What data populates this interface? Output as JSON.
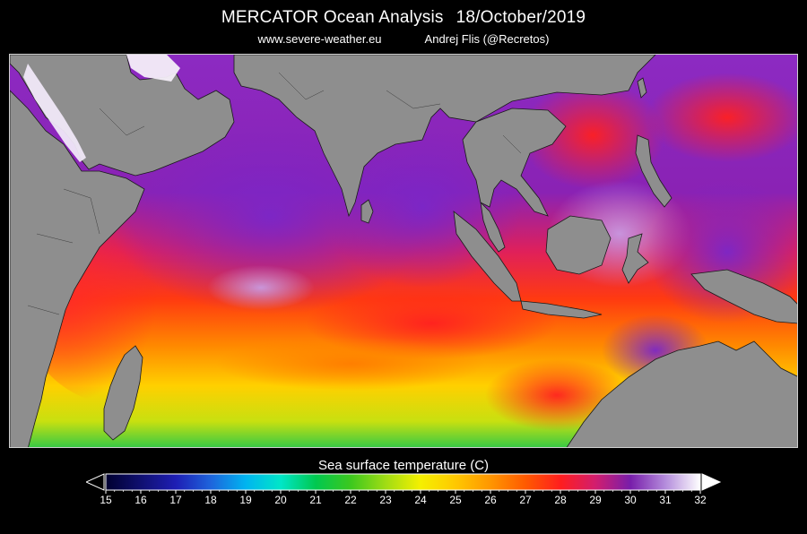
{
  "header": {
    "title_main": "MERCATOR Ocean Analysis",
    "title_date": "18/October/2019",
    "website": "www.severe-weather.eu",
    "author": "Andrej Flis (@Recretos)"
  },
  "map": {
    "variable": "Sea surface temperature",
    "land_color": "#8e8e8e",
    "coastline_color": "#1a1a1a"
  },
  "colorbar": {
    "title": "Sea surface temperature (C)",
    "min": 15,
    "max": 32,
    "tick_labels": [
      "15",
      "16",
      "17",
      "18",
      "19",
      "20",
      "21",
      "22",
      "23",
      "24",
      "25",
      "26",
      "27",
      "28",
      "29",
      "30",
      "31",
      "32"
    ],
    "color_stops": [
      {
        "value": 15,
        "color": "#000030"
      },
      {
        "value": 16,
        "color": "#101070"
      },
      {
        "value": 17,
        "color": "#1e1eb4"
      },
      {
        "value": 18,
        "color": "#1e64dc"
      },
      {
        "value": 19,
        "color": "#00b4f0"
      },
      {
        "value": 20,
        "color": "#00e6c8"
      },
      {
        "value": 21,
        "color": "#00c850"
      },
      {
        "value": 22,
        "color": "#3cc81e"
      },
      {
        "value": 23,
        "color": "#a0dc14"
      },
      {
        "value": 24,
        "color": "#f5f000"
      },
      {
        "value": 25,
        "color": "#ffc800"
      },
      {
        "value": 26,
        "color": "#ff9600"
      },
      {
        "value": 27,
        "color": "#ff5a00"
      },
      {
        "value": 28,
        "color": "#ff1e1e"
      },
      {
        "value": 29,
        "color": "#d21e6e"
      },
      {
        "value": 30,
        "color": "#781eaa"
      },
      {
        "value": 31,
        "color": "#b48cdc"
      },
      {
        "value": 32,
        "color": "#ffffff"
      }
    ]
  }
}
